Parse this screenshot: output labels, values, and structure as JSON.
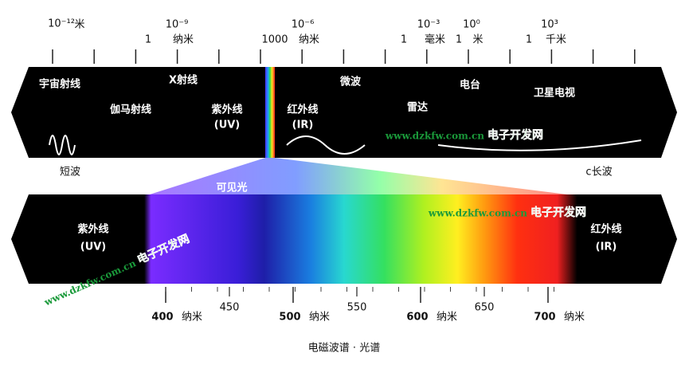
{
  "top_scale": {
    "first": {
      "power": "10⁻¹²",
      "unit": "米"
    },
    "marks": [
      {
        "power": "10⁻⁹",
        "amount": "1",
        "unit": "纳米"
      },
      {
        "power": "10⁻⁶",
        "amount": "1000",
        "unit": "纳米"
      },
      {
        "power": "10⁻³",
        "amount": "1",
        "unit": "毫米"
      },
      {
        "power": "10⁰",
        "amount": "1",
        "unit": "米"
      },
      {
        "power": "10³",
        "amount": "1",
        "unit": "千米"
      }
    ]
  },
  "band_labels": [
    "宇宙射线",
    "伽马射线",
    "X射线",
    "紫外线",
    "(UV)",
    "红外线",
    "(IR)",
    "微波",
    "雷达",
    "电台",
    "卫星电视"
  ],
  "short_wave": "短波",
  "long_wave": "c长波",
  "visible_light": "可见光",
  "spectrum": {
    "left": [
      "紫外线",
      "(UV)"
    ],
    "right": [
      "红外线",
      "(IR)"
    ]
  },
  "spectrum_scale": {
    "major": [
      400,
      500,
      600,
      700
    ],
    "minor": [
      450,
      550,
      650
    ],
    "unit": "纳米"
  },
  "watermarks": [
    "www.dzkfw.com.cn",
    "电子开发网"
  ],
  "caption": "电磁波谱 · 光谱"
}
